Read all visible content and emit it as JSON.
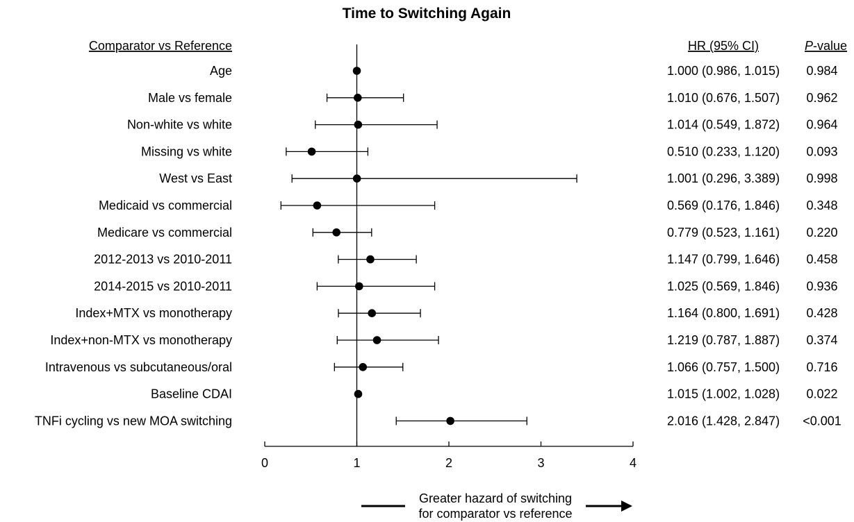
{
  "chart_data": {
    "type": "forest",
    "title": "Time to Switching Again",
    "column_headers": {
      "label": "Comparator vs Reference",
      "hr": "HR (95% CI)",
      "p_italic": "P",
      "p_rest": "-value"
    },
    "xlim": [
      0,
      4
    ],
    "xticks": [
      "0",
      "1",
      "2",
      "3",
      "4"
    ],
    "reference_line": 1,
    "xlabel_line1": "Greater hazard of switching",
    "xlabel_line2": "for comparator vs reference",
    "rows": [
      {
        "label": "Age",
        "hr": 1.0,
        "lo": 0.986,
        "hi": 1.015,
        "hr_text": "1.000 (0.986, 1.015)",
        "p": "0.984"
      },
      {
        "label": "Male vs female",
        "hr": 1.01,
        "lo": 0.676,
        "hi": 1.507,
        "hr_text": "1.010 (0.676, 1.507)",
        "p": "0.962"
      },
      {
        "label": "Non-white vs white",
        "hr": 1.014,
        "lo": 0.549,
        "hi": 1.872,
        "hr_text": "1.014 (0.549, 1.872)",
        "p": "0.964"
      },
      {
        "label": "Missing vs white",
        "hr": 0.51,
        "lo": 0.233,
        "hi": 1.12,
        "hr_text": "0.510 (0.233, 1.120)",
        "p": "0.093"
      },
      {
        "label": "West vs East",
        "hr": 1.001,
        "lo": 0.296,
        "hi": 3.389,
        "hr_text": "1.001 (0.296, 3.389)",
        "p": "0.998"
      },
      {
        "label": "Medicaid vs commercial",
        "hr": 0.569,
        "lo": 0.176,
        "hi": 1.846,
        "hr_text": "0.569 (0.176, 1.846)",
        "p": "0.348"
      },
      {
        "label": "Medicare vs commercial",
        "hr": 0.779,
        "lo": 0.523,
        "hi": 1.161,
        "hr_text": "0.779 (0.523, 1.161)",
        "p": "0.220"
      },
      {
        "label": "2012-2013 vs 2010-2011",
        "hr": 1.147,
        "lo": 0.799,
        "hi": 1.646,
        "hr_text": "1.147 (0.799, 1.646)",
        "p": "0.458"
      },
      {
        "label": "2014-2015 vs 2010-2011",
        "hr": 1.025,
        "lo": 0.569,
        "hi": 1.846,
        "hr_text": "1.025 (0.569, 1.846)",
        "p": "0.936"
      },
      {
        "label": "Index+MTX vs monotherapy",
        "hr": 1.164,
        "lo": 0.8,
        "hi": 1.691,
        "hr_text": "1.164 (0.800, 1.691)",
        "p": "0.428"
      },
      {
        "label": "Index+non-MTX vs monotherapy",
        "hr": 1.219,
        "lo": 0.787,
        "hi": 1.887,
        "hr_text": "1.219 (0.787, 1.887)",
        "p": "0.374"
      },
      {
        "label": "Intravenous vs subcutaneous/oral",
        "hr": 1.066,
        "lo": 0.757,
        "hi": 1.5,
        "hr_text": "1.066 (0.757, 1.500)",
        "p": "0.716"
      },
      {
        "label": "Baseline CDAI",
        "hr": 1.015,
        "lo": 1.002,
        "hi": 1.028,
        "hr_text": "1.015 (1.002, 1.028)",
        "p": "0.022"
      },
      {
        "label": "TNFi cycling vs new MOA switching",
        "hr": 2.016,
        "lo": 1.428,
        "hi": 2.847,
        "hr_text": "2.016 (1.428, 2.847)",
        "p": "<0.001"
      }
    ]
  }
}
